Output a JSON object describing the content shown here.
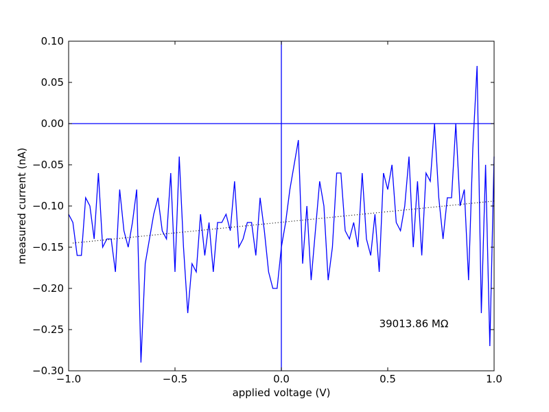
{
  "chart_data": {
    "type": "line",
    "xlabel": "applied voltage (V)",
    "ylabel": "measured current (nA)",
    "xlim": [
      -1.0,
      1.0
    ],
    "ylim": [
      -0.3,
      0.1
    ],
    "x_ticks": [
      {
        "value": -1.0,
        "label": "−1.0"
      },
      {
        "value": -0.5,
        "label": "−0.5"
      },
      {
        "value": 0.0,
        "label": "0.0"
      },
      {
        "value": 0.5,
        "label": "0.5"
      },
      {
        "value": 1.0,
        "label": "1.0"
      }
    ],
    "y_ticks": [
      {
        "value": 0.1,
        "label": "0.10"
      },
      {
        "value": 0.05,
        "label": "0.05"
      },
      {
        "value": 0.0,
        "label": "0.00"
      },
      {
        "value": -0.05,
        "label": "−0.05"
      },
      {
        "value": -0.1,
        "label": "−0.10"
      },
      {
        "value": -0.15,
        "label": "−0.15"
      },
      {
        "value": -0.2,
        "label": "−0.20"
      },
      {
        "value": -0.25,
        "label": "−0.25"
      },
      {
        "value": -0.3,
        "label": "−0.30"
      }
    ],
    "grid": false,
    "reference_lines": {
      "horizontal_at_y": 0.0,
      "vertical_at_x": 0.0,
      "color": "#0000ff"
    },
    "annotation": {
      "text": "39013.86 MΩ",
      "x": 0.46,
      "y": -0.247
    },
    "series": [
      {
        "style": "solid",
        "color": "#0000ff",
        "x": [
          -1.0,
          -0.98,
          -0.96,
          -0.94,
          -0.92,
          -0.9,
          -0.88,
          -0.86,
          -0.84,
          -0.82,
          -0.8,
          -0.78,
          -0.76,
          -0.74,
          -0.72,
          -0.7,
          -0.68,
          -0.66,
          -0.64,
          -0.62,
          -0.6,
          -0.58,
          -0.56,
          -0.54,
          -0.52,
          -0.5,
          -0.48,
          -0.46,
          -0.44,
          -0.42,
          -0.4,
          -0.38,
          -0.36,
          -0.34,
          -0.32,
          -0.3,
          -0.28,
          -0.26,
          -0.24,
          -0.22,
          -0.2,
          -0.18,
          -0.16,
          -0.14,
          -0.12,
          -0.1,
          -0.08,
          -0.06,
          -0.04,
          -0.02,
          0.0,
          0.02,
          0.04,
          0.06,
          0.08,
          0.1,
          0.12,
          0.14,
          0.16,
          0.18,
          0.2,
          0.22,
          0.24,
          0.26,
          0.28,
          0.3,
          0.32,
          0.34,
          0.36,
          0.38,
          0.4,
          0.42,
          0.44,
          0.46,
          0.48,
          0.5,
          0.52,
          0.54,
          0.56,
          0.58,
          0.6,
          0.62,
          0.64,
          0.66,
          0.68,
          0.7,
          0.72,
          0.74,
          0.76,
          0.78,
          0.8,
          0.82,
          0.84,
          0.86,
          0.88,
          0.9,
          0.92,
          0.94,
          0.96,
          0.98,
          1.0
        ],
        "y": [
          -0.11,
          -0.12,
          -0.16,
          -0.16,
          -0.09,
          -0.1,
          -0.14,
          -0.06,
          -0.15,
          -0.14,
          -0.14,
          -0.18,
          -0.08,
          -0.13,
          -0.15,
          -0.12,
          -0.08,
          -0.29,
          -0.17,
          -0.14,
          -0.11,
          -0.09,
          -0.13,
          -0.14,
          -0.06,
          -0.18,
          -0.04,
          -0.15,
          -0.23,
          -0.17,
          -0.18,
          -0.11,
          -0.16,
          -0.12,
          -0.18,
          -0.12,
          -0.12,
          -0.11,
          -0.13,
          -0.07,
          -0.15,
          -0.14,
          -0.12,
          -0.12,
          -0.16,
          -0.09,
          -0.13,
          -0.18,
          -0.2,
          -0.2,
          -0.15,
          -0.12,
          -0.08,
          -0.05,
          -0.02,
          -0.17,
          -0.1,
          -0.19,
          -0.13,
          -0.07,
          -0.1,
          -0.19,
          -0.15,
          -0.06,
          -0.06,
          -0.13,
          -0.14,
          -0.12,
          -0.15,
          -0.06,
          -0.14,
          -0.16,
          -0.11,
          -0.18,
          -0.06,
          -0.08,
          -0.05,
          -0.12,
          -0.13,
          -0.1,
          -0.04,
          -0.15,
          -0.07,
          -0.16,
          -0.06,
          -0.07,
          0.0,
          -0.09,
          -0.14,
          -0.09,
          -0.09,
          0.0,
          -0.1,
          -0.08,
          -0.19,
          -0.03,
          0.07,
          -0.23,
          -0.05,
          -0.27,
          -0.04
        ]
      },
      {
        "style": "dotted",
        "color": "#000000",
        "x": [
          -0.98,
          1.0
        ],
        "y": [
          -0.145,
          -0.094
        ]
      }
    ]
  }
}
